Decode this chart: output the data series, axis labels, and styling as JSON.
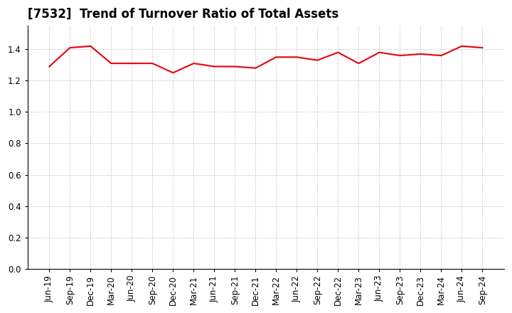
{
  "title": "[7532]  Trend of Turnover Ratio of Total Assets",
  "x_labels": [
    "Jun-19",
    "Sep-19",
    "Dec-19",
    "Mar-20",
    "Jun-20",
    "Sep-20",
    "Dec-20",
    "Mar-21",
    "Jun-21",
    "Sep-21",
    "Dec-21",
    "Mar-22",
    "Jun-22",
    "Sep-22",
    "Dec-22",
    "Mar-23",
    "Jun-23",
    "Sep-23",
    "Dec-23",
    "Mar-24",
    "Jun-24",
    "Sep-24"
  ],
  "y_values": [
    1.29,
    1.41,
    1.42,
    1.31,
    1.31,
    1.31,
    1.25,
    1.31,
    1.29,
    1.29,
    1.28,
    1.35,
    1.35,
    1.33,
    1.38,
    1.31,
    1.38,
    1.36,
    1.37,
    1.36,
    1.42,
    1.41
  ],
  "line_color": "#e8000d",
  "ylim": [
    0.0,
    1.55
  ],
  "yticks": [
    0.0,
    0.2,
    0.4,
    0.6,
    0.8,
    1.0,
    1.2,
    1.4
  ],
  "background_color": "#ffffff",
  "grid_color": "#aaaaaa",
  "title_fontsize": 12,
  "axis_fontsize": 8.5
}
